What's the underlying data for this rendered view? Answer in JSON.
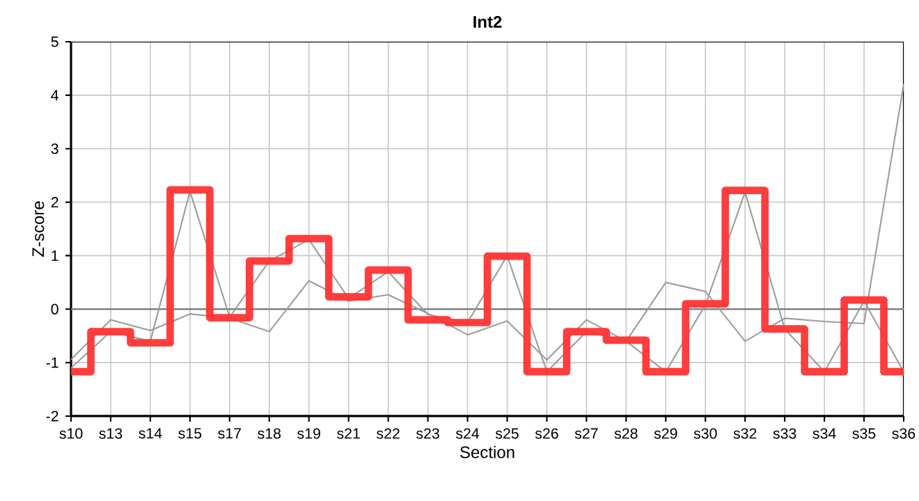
{
  "chart_data": {
    "type": "line",
    "title": "Int2",
    "xlabel": "Section",
    "ylabel": "Z-score",
    "categories": [
      "s10",
      "s13",
      "s14",
      "s15",
      "s17",
      "s18",
      "s19",
      "s21",
      "s22",
      "s23",
      "s24",
      "s25",
      "s26",
      "s27",
      "s28",
      "s29",
      "s30",
      "s32",
      "s33",
      "s34",
      "s35",
      "s36"
    ],
    "series": [
      {
        "color": "#999999",
        "values": [
          -0.94,
          -0.2,
          -0.4,
          -0.09,
          -0.17,
          -0.42,
          0.53,
          0.15,
          0.27,
          -0.08,
          -0.48,
          -0.22,
          -0.95,
          -0.2,
          -0.6,
          0.5,
          0.33,
          -0.6,
          -0.17,
          -0.23,
          -0.27,
          4.2
        ]
      },
      {
        "color": "#999999",
        "values": [
          -1.1,
          -0.42,
          -0.6,
          2.2,
          -0.15,
          0.9,
          1.3,
          0.2,
          0.7,
          -0.1,
          -0.25,
          1.0,
          -1.17,
          -0.42,
          -0.6,
          -1.17,
          0.08,
          2.19,
          -0.37,
          -1.17,
          0.15,
          -1.17
        ]
      },
      {
        "type": "step",
        "color": "#ff3333",
        "values": [
          -1.17,
          -0.42,
          -0.63,
          2.23,
          -0.16,
          0.9,
          1.32,
          0.23,
          0.73,
          -0.2,
          -0.25,
          0.99,
          -1.17,
          -0.42,
          -0.58,
          -1.17,
          0.1,
          2.22,
          -0.37,
          -1.17,
          0.17,
          -1.17
        ]
      }
    ],
    "ylim": [
      -2,
      5
    ],
    "yticks": [
      -2,
      -1,
      0,
      1,
      2,
      3,
      4,
      5
    ],
    "grid": true,
    "ref_lines": [
      {
        "axis": "y",
        "value": 0,
        "color": "#808080"
      }
    ]
  }
}
